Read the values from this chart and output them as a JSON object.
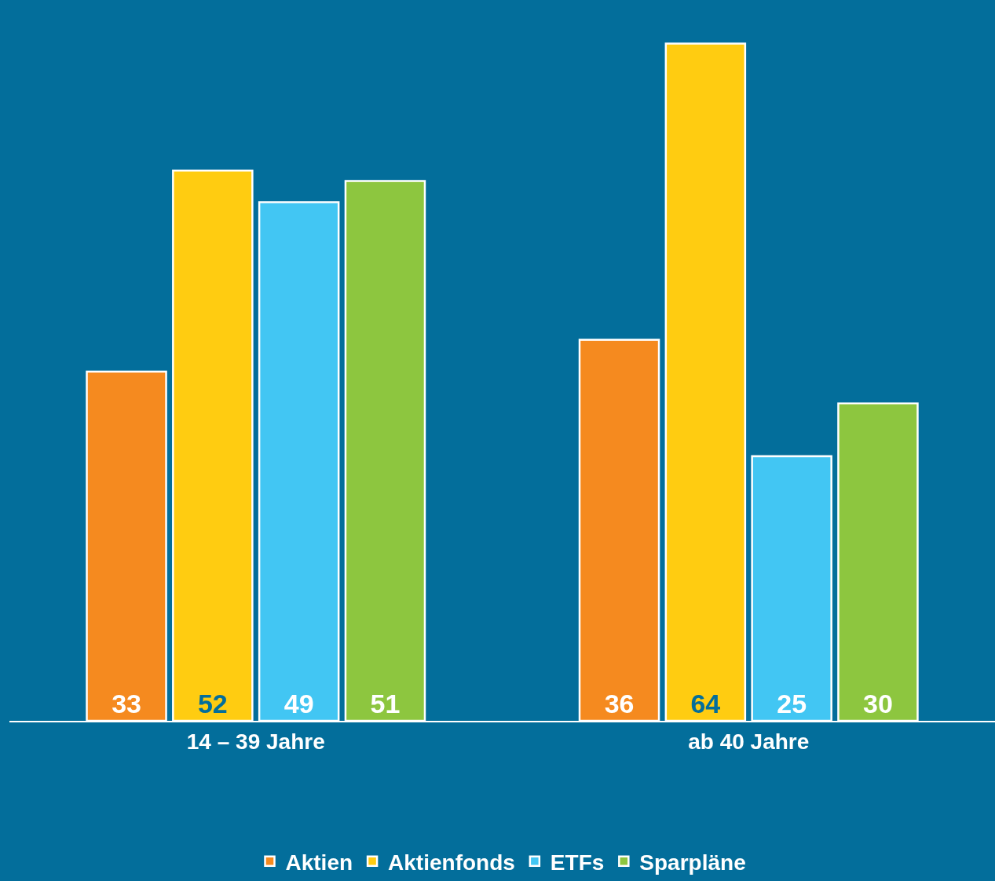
{
  "chart_data": {
    "type": "bar",
    "categories": [
      "14 – 39 Jahre",
      "ab 40 Jahre"
    ],
    "series": [
      {
        "name": "Aktien",
        "color": "#f58a1f",
        "values": [
          33,
          36
        ]
      },
      {
        "name": "Aktienfonds",
        "color": "#ffcc11",
        "values": [
          52,
          64
        ]
      },
      {
        "name": "ETFs",
        "color": "#42c6f3",
        "values": [
          49,
          25
        ]
      },
      {
        "name": "Sparpläne",
        "color": "#8dc63f",
        "values": [
          51,
          30
        ]
      }
    ],
    "data_labels": true,
    "legend": "bottom"
  }
}
